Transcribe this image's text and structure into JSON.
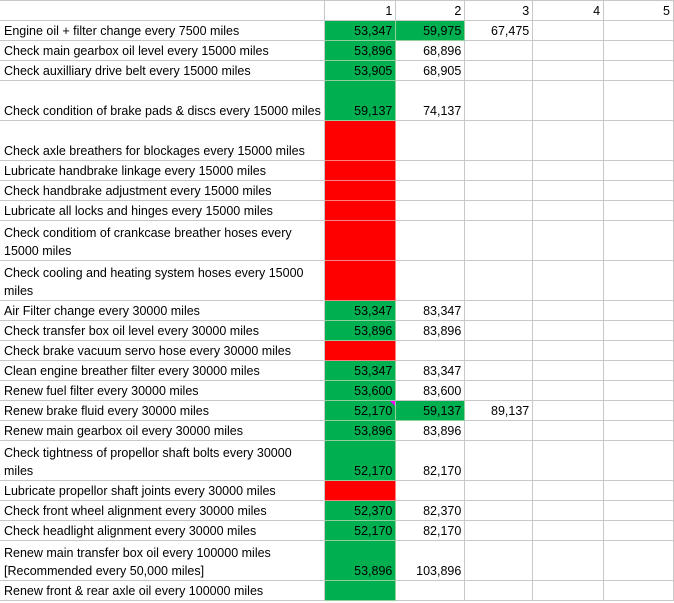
{
  "headers": [
    "",
    "1",
    "2",
    "3",
    "4",
    "5"
  ],
  "rows": [
    {
      "desc": "Engine oil + filter change every 7500 miles",
      "c1": "53,347",
      "c1s": "green",
      "c2": "59,975",
      "c2s": "green",
      "c3": "67,475"
    },
    {
      "desc": "Check main gearbox oil level every 15000 miles",
      "c1": "53,896",
      "c1s": "green",
      "c2": "68,896"
    },
    {
      "desc": "Check auxilliary drive belt every 15000 miles",
      "c1": "53,905",
      "c1s": "green",
      "c2": "68,905"
    },
    {
      "desc": "Check condition of brake pads & discs every 15000 miles",
      "c1": "59,137",
      "c1s": "green",
      "c2": "74,137",
      "tall": true
    },
    {
      "desc": "Check axle breathers for blockages every 15000 miles",
      "c1": "",
      "c1s": "red",
      "tall": true
    },
    {
      "desc": "Lubricate handbrake linkage every 15000 miles",
      "c1": "",
      "c1s": "red"
    },
    {
      "desc": "Check handbrake adjustment every 15000 miles",
      "c1": "",
      "c1s": "red"
    },
    {
      "desc": "Lubricate all locks and hinges every 15000 miles",
      "c1": "",
      "c1s": "red"
    },
    {
      "desc": "Check conditiom of crankcase breather hoses every 15000 miles",
      "c1": "",
      "c1s": "red",
      "tall": true
    },
    {
      "desc": "Check cooling and heating system hoses every 15000 miles",
      "c1": "",
      "c1s": "red",
      "tall": true
    },
    {
      "desc": "Air Filter change every 30000 miles",
      "c1": "53,347",
      "c1s": "green",
      "c2": "83,347"
    },
    {
      "desc": "Check transfer box oil level every 30000 miles",
      "c1": "53,896",
      "c1s": "green",
      "c2": "83,896"
    },
    {
      "desc": "Check brake vacuum servo hose every 30000 miles",
      "c1": "",
      "c1s": "red"
    },
    {
      "desc": "Clean engine breather filter every 30000 miles",
      "c1": "53,347",
      "c1s": "green",
      "c2": "83,347"
    },
    {
      "desc": "Renew fuel filter every 30000 miles",
      "c1": "53,600",
      "c1s": "green",
      "c2": "83,600"
    },
    {
      "desc": "Renew brake fluid every 30000 miles",
      "c1": "52,170",
      "c1s": "green",
      "c2": "59,137",
      "c2s": "green",
      "c3": "89,137",
      "mark": true
    },
    {
      "desc": "Renew main gearbox oil every 30000 miles",
      "c1": "53,896",
      "c1s": "green",
      "c2": "83,896"
    },
    {
      "desc": "Check tightness of propellor shaft bolts every 30000 miles",
      "c1": "52,170",
      "c1s": "green",
      "c2": "82,170",
      "tall": true
    },
    {
      "desc": "Lubricate propellor shaft joints every 30000 miles",
      "c1": "",
      "c1s": "red"
    },
    {
      "desc": "Check front wheel alignment every 30000 miles",
      "c1": "52,370",
      "c1s": "green",
      "c2": "82,370"
    },
    {
      "desc": "Check headlight alignment every 30000 miles",
      "c1": "52,170",
      "c1s": "green",
      "c2": "82,170"
    },
    {
      "desc": "Renew main transfer box oil every 100000 miles [Recommended every 50,000 miles]",
      "c1": "53,896",
      "c1s": "green",
      "c2": "103,896",
      "tall": true
    },
    {
      "desc": "Renew front & rear axle oil every 100000 miles",
      "c1": "",
      "c1s": "green"
    }
  ]
}
